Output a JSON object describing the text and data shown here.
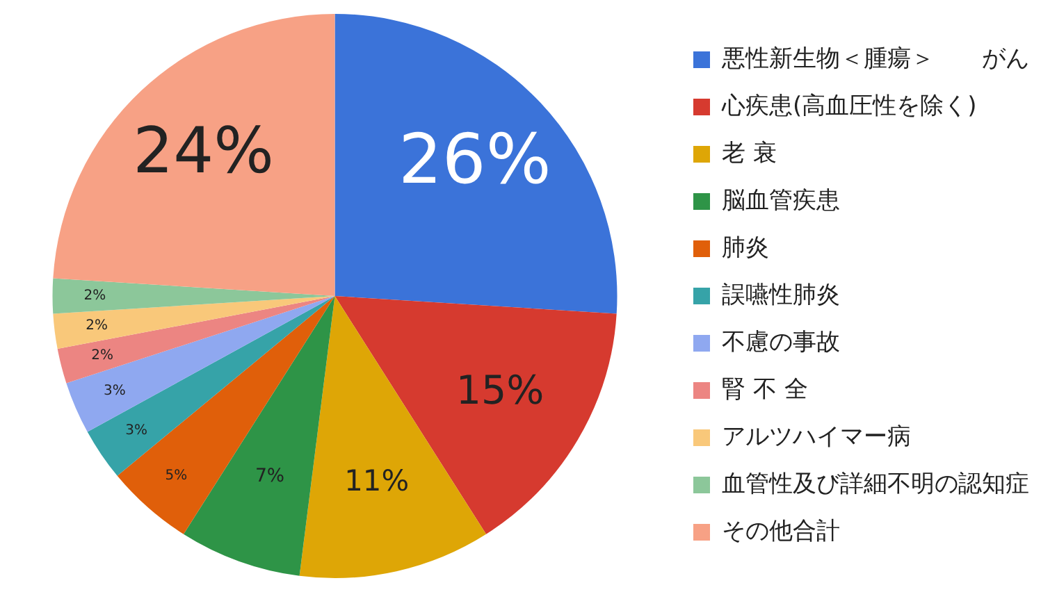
{
  "chart_data": {
    "type": "pie",
    "categories": [
      "悪性新生物＜腫瘍＞　　がん",
      "心疾患(高血圧性を除く)",
      "老 衰",
      "脳血管疾患",
      "肺炎",
      "誤嚥性肺炎",
      "不慮の事故",
      "腎 不 全",
      "アルツハイマー病",
      "血管性及び詳細不明の認知症",
      "その他合計"
    ],
    "values": [
      26,
      15,
      11,
      7,
      5,
      3,
      3,
      2,
      2,
      2,
      24
    ],
    "colors": [
      "#3b73d9",
      "#d63a2f",
      "#dea606",
      "#2e9447",
      "#e05f0a",
      "#36a3a8",
      "#8fa8f0",
      "#ec8582",
      "#f9c87a",
      "#8cc79a",
      "#f7a185"
    ],
    "value_labels": [
      "26%",
      "15%",
      "11%",
      "7%",
      "5%",
      "3%",
      "3%",
      "2%",
      "2%",
      "2%",
      "24%"
    ],
    "legend": "right"
  }
}
